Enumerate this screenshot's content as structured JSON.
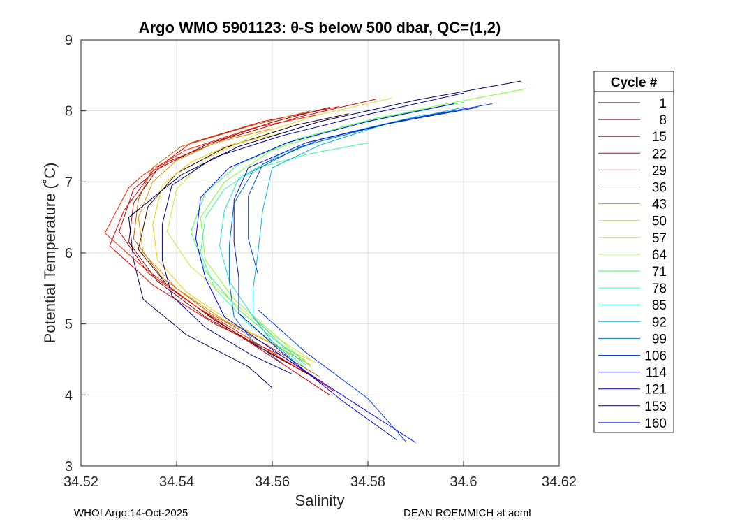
{
  "chart_data": {
    "type": "line",
    "title": "Argo WMO 5901123: θ-S below 500 dbar,  QC=(1,2)",
    "xlabel": "Salinity",
    "ylabel": "Potential Temperature (˚C)",
    "xlim": [
      34.52,
      34.62
    ],
    "ylim": [
      3,
      9
    ],
    "xticks": [
      "34.52",
      "34.54",
      "34.56",
      "34.58",
      "34.6",
      "34.62"
    ],
    "yticks": [
      "3",
      "4",
      "5",
      "6",
      "7",
      "8",
      "9"
    ],
    "grid": true,
    "legend": {
      "title": "Cycle #",
      "placement": "outside-right",
      "entries": [
        {
          "label": "1",
          "color": "#3a0000"
        },
        {
          "label": "8",
          "color": "#8b0000"
        },
        {
          "label": "15",
          "color": "#c00000"
        },
        {
          "label": "22",
          "color": "#e00000"
        },
        {
          "label": "29",
          "color": "#ff2000"
        },
        {
          "label": "36",
          "color": "#c05a00"
        },
        {
          "label": "43",
          "color": "#e09000"
        },
        {
          "label": "50",
          "color": "#f0d000"
        },
        {
          "label": "57",
          "color": "#d0e040"
        },
        {
          "label": "64",
          "color": "#80ff30"
        },
        {
          "label": "71",
          "color": "#30ff60"
        },
        {
          "label": "78",
          "color": "#30ffa0"
        },
        {
          "label": "85",
          "color": "#20e0d0"
        },
        {
          "label": "92",
          "color": "#10b0e0"
        },
        {
          "label": "99",
          "color": "#0070c0"
        },
        {
          "label": "106",
          "color": "#0040e0"
        },
        {
          "label": "114",
          "color": "#0010d0"
        },
        {
          "label": "121",
          "color": "#000090"
        },
        {
          "label": "153",
          "color": "#000060"
        },
        {
          "label": "160",
          "color": "#0000ff"
        }
      ]
    },
    "series": [
      {
        "name": "1",
        "color": "#3a0000",
        "points": [
          [
            34.576,
            7.96
          ],
          [
            34.565,
            7.8
          ],
          [
            34.55,
            7.48
          ],
          [
            34.54,
            7.12
          ],
          [
            34.534,
            6.65
          ],
          [
            34.532,
            6.05
          ],
          [
            34.538,
            5.55
          ],
          [
            34.548,
            5.05
          ],
          [
            34.558,
            4.65
          ],
          [
            34.568,
            4.28
          ]
        ]
      },
      {
        "name": "8",
        "color": "#8b0000",
        "points": [
          [
            34.572,
            8.05
          ],
          [
            34.56,
            7.84
          ],
          [
            34.546,
            7.52
          ],
          [
            34.536,
            7.18
          ],
          [
            34.531,
            6.7
          ],
          [
            34.53,
            6.15
          ],
          [
            34.536,
            5.6
          ],
          [
            34.546,
            5.1
          ],
          [
            34.557,
            4.68
          ],
          [
            34.57,
            4.2
          ]
        ]
      },
      {
        "name": "15",
        "color": "#c00000",
        "points": [
          [
            34.582,
            8.17
          ],
          [
            34.566,
            7.92
          ],
          [
            34.55,
            7.6
          ],
          [
            34.538,
            7.28
          ],
          [
            34.531,
            6.9
          ],
          [
            34.528,
            6.3
          ],
          [
            34.534,
            5.72
          ],
          [
            34.545,
            5.2
          ],
          [
            34.558,
            4.62
          ],
          [
            34.572,
            4.0
          ]
        ]
      },
      {
        "name": "22",
        "color": "#e00000",
        "points": [
          [
            34.574,
            8.06
          ],
          [
            34.558,
            7.85
          ],
          [
            34.543,
            7.55
          ],
          [
            34.535,
            7.15
          ],
          [
            34.529,
            6.6
          ],
          [
            34.526,
            6.1
          ],
          [
            34.535,
            5.55
          ],
          [
            34.548,
            5.0
          ],
          [
            34.562,
            4.55
          ],
          [
            34.573,
            4.05
          ]
        ]
      },
      {
        "name": "29",
        "color": "#ff2000",
        "points": [
          [
            34.57,
            7.95
          ],
          [
            34.556,
            7.76
          ],
          [
            34.542,
            7.45
          ],
          [
            34.533,
            7.1
          ],
          [
            34.53,
            6.92
          ],
          [
            34.525,
            6.28
          ],
          [
            34.533,
            5.8
          ],
          [
            34.544,
            5.25
          ],
          [
            34.555,
            4.8
          ],
          [
            34.566,
            4.35
          ]
        ]
      },
      {
        "name": "36",
        "color": "#c05a00",
        "points": [
          [
            34.568,
            8.0
          ],
          [
            34.555,
            7.78
          ],
          [
            34.541,
            7.5
          ],
          [
            34.535,
            7.2
          ],
          [
            34.532,
            6.75
          ],
          [
            34.531,
            6.2
          ],
          [
            34.537,
            5.65
          ],
          [
            34.547,
            5.15
          ],
          [
            34.559,
            4.7
          ],
          [
            34.57,
            4.25
          ]
        ]
      },
      {
        "name": "43",
        "color": "#e09000",
        "points": [
          [
            34.56,
            7.75
          ],
          [
            34.548,
            7.55
          ],
          [
            34.54,
            7.3
          ],
          [
            34.535,
            7.0
          ],
          [
            34.532,
            6.5
          ],
          [
            34.533,
            6.0
          ],
          [
            34.54,
            5.5
          ],
          [
            34.55,
            5.05
          ],
          [
            34.56,
            4.72
          ],
          [
            34.568,
            4.42
          ]
        ]
      },
      {
        "name": "50",
        "color": "#f0d000",
        "points": [
          [
            34.563,
            7.7
          ],
          [
            34.551,
            7.52
          ],
          [
            34.543,
            7.28
          ],
          [
            34.537,
            6.95
          ],
          [
            34.535,
            6.4
          ],
          [
            34.536,
            5.9
          ],
          [
            34.542,
            5.45
          ],
          [
            34.552,
            5.0
          ],
          [
            34.561,
            4.7
          ],
          [
            34.569,
            4.46
          ]
        ]
      },
      {
        "name": "57",
        "color": "#d0e040",
        "points": [
          [
            34.585,
            8.18
          ],
          [
            34.57,
            7.95
          ],
          [
            34.556,
            7.65
          ],
          [
            34.546,
            7.32
          ],
          [
            34.54,
            6.9
          ],
          [
            34.538,
            6.3
          ],
          [
            34.543,
            5.8
          ],
          [
            34.552,
            5.3
          ],
          [
            34.56,
            4.85
          ],
          [
            34.568,
            4.5
          ]
        ]
      },
      {
        "name": "64",
        "color": "#80ff30",
        "points": [
          [
            34.613,
            8.31
          ],
          [
            34.595,
            8.08
          ],
          [
            34.575,
            7.78
          ],
          [
            34.56,
            7.45
          ],
          [
            34.55,
            7.0
          ],
          [
            34.545,
            6.5
          ],
          [
            34.546,
            5.9
          ],
          [
            34.552,
            5.35
          ],
          [
            34.56,
            4.88
          ],
          [
            34.568,
            4.4
          ]
        ]
      },
      {
        "name": "71",
        "color": "#30ff60",
        "points": [
          [
            34.6,
            8.12
          ],
          [
            34.582,
            7.9
          ],
          [
            34.565,
            7.6
          ],
          [
            34.553,
            7.25
          ],
          [
            34.546,
            6.85
          ],
          [
            34.543,
            6.3
          ],
          [
            34.546,
            5.75
          ],
          [
            34.553,
            5.2
          ],
          [
            34.561,
            4.75
          ],
          [
            34.567,
            4.48
          ]
        ]
      },
      {
        "name": "78",
        "color": "#30ffa0",
        "points": [
          [
            34.58,
            7.55
          ],
          [
            34.568,
            7.4
          ],
          [
            34.557,
            7.2
          ],
          [
            34.55,
            6.9
          ],
          [
            34.546,
            6.5
          ],
          [
            34.545,
            6.0
          ],
          [
            34.548,
            5.5
          ],
          [
            34.555,
            5.0
          ],
          [
            34.562,
            4.65
          ],
          [
            34.567,
            4.38
          ]
        ]
      },
      {
        "name": "85",
        "color": "#20e0d0",
        "points": [
          [
            34.592,
            7.95
          ],
          [
            34.576,
            7.7
          ],
          [
            34.562,
            7.4
          ],
          [
            34.553,
            7.05
          ],
          [
            34.55,
            6.6
          ],
          [
            34.549,
            6.1
          ],
          [
            34.551,
            5.6
          ],
          [
            34.556,
            5.1
          ],
          [
            34.562,
            4.7
          ],
          [
            34.567,
            4.42
          ]
        ]
      },
      {
        "name": "92",
        "color": "#10b0e0",
        "points": [
          [
            34.6,
            8.05
          ],
          [
            34.584,
            7.82
          ],
          [
            34.57,
            7.52
          ],
          [
            34.56,
            7.2
          ],
          [
            34.558,
            6.6
          ],
          [
            34.557,
            6.0
          ],
          [
            34.556,
            5.5
          ],
          [
            34.556,
            5.1
          ],
          [
            34.56,
            4.75
          ],
          [
            34.565,
            4.45
          ]
        ]
      },
      {
        "name": "99",
        "color": "#0070c0",
        "points": [
          [
            34.598,
            8.0
          ],
          [
            34.583,
            7.8
          ],
          [
            34.566,
            7.5
          ],
          [
            34.556,
            7.15
          ],
          [
            34.552,
            6.7
          ],
          [
            34.551,
            6.1
          ],
          [
            34.551,
            5.6
          ],
          [
            34.552,
            5.1
          ],
          [
            34.556,
            4.75
          ],
          [
            34.562,
            4.45
          ]
        ]
      },
      {
        "name": "106",
        "color": "#0040e0",
        "points": [
          [
            34.606,
            8.1
          ],
          [
            34.588,
            7.88
          ],
          [
            34.57,
            7.6
          ],
          [
            34.558,
            7.25
          ],
          [
            34.555,
            6.8
          ],
          [
            34.555,
            6.2
          ],
          [
            34.557,
            5.7
          ],
          [
            34.557,
            5.2
          ],
          [
            34.567,
            4.6
          ],
          [
            34.58,
            3.95
          ],
          [
            34.588,
            3.34
          ]
        ]
      },
      {
        "name": "114",
        "color": "#0010d0",
        "points": [
          [
            34.603,
            8.05
          ],
          [
            34.585,
            7.83
          ],
          [
            34.567,
            7.55
          ],
          [
            34.555,
            7.2
          ],
          [
            34.552,
            6.75
          ],
          [
            34.552,
            6.15
          ],
          [
            34.553,
            5.65
          ],
          [
            34.553,
            5.15
          ],
          [
            34.562,
            4.6
          ],
          [
            34.575,
            3.9
          ],
          [
            34.586,
            3.37
          ]
        ]
      },
      {
        "name": "121",
        "color": "#000090",
        "points": [
          [
            34.6,
            8.25
          ],
          [
            34.58,
            7.95
          ],
          [
            34.562,
            7.65
          ],
          [
            34.548,
            7.35
          ],
          [
            34.539,
            6.95
          ],
          [
            34.537,
            6.4
          ],
          [
            34.537,
            5.9
          ],
          [
            34.539,
            5.4
          ],
          [
            34.546,
            4.95
          ],
          [
            34.556,
            4.55
          ],
          [
            34.564,
            4.3
          ]
        ]
      },
      {
        "name": "153",
        "color": "#000060",
        "points": [
          [
            34.612,
            8.42
          ],
          [
            34.59,
            8.15
          ],
          [
            34.57,
            7.85
          ],
          [
            34.553,
            7.5
          ],
          [
            34.541,
            7.1
          ],
          [
            34.53,
            6.5
          ],
          [
            34.531,
            5.9
          ],
          [
            34.533,
            5.35
          ],
          [
            34.542,
            4.85
          ],
          [
            34.555,
            4.4
          ],
          [
            34.56,
            4.1
          ]
        ]
      },
      {
        "name": "160",
        "color": "#0000ff",
        "points": [
          [
            34.598,
            8.1
          ],
          [
            34.58,
            7.85
          ],
          [
            34.563,
            7.55
          ],
          [
            34.551,
            7.2
          ],
          [
            34.545,
            6.78
          ],
          [
            34.544,
            6.2
          ],
          [
            34.546,
            5.65
          ],
          [
            34.55,
            5.1
          ],
          [
            34.562,
            4.55
          ],
          [
            34.578,
            3.85
          ],
          [
            34.59,
            3.33
          ]
        ]
      }
    ]
  },
  "footer": {
    "left": "WHOI Argo:14-Oct-2025",
    "right": "DEAN ROEMMICH at aoml"
  }
}
